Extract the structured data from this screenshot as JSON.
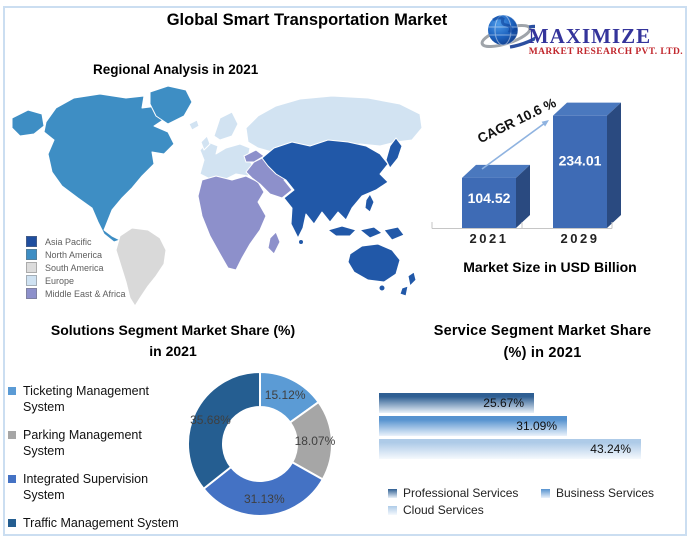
{
  "header": {
    "title": "Global Smart Transportation Market"
  },
  "logo": {
    "name": "MAXIMIZE",
    "subtitle": "MARKET RESEARCH PVT. LTD.",
    "name_color": "#34349B",
    "subtitle_color": "#C1272D"
  },
  "map": {
    "title": "Regional Analysis in 2021",
    "legend": [
      {
        "label": "Asia Pacific",
        "color": "#1F4E9F"
      },
      {
        "label": "North America",
        "color": "#3E8EC4"
      },
      {
        "label": "South America",
        "color": "#DCDCDC"
      },
      {
        "label": "Europe",
        "color": "#CFE2F2"
      },
      {
        "label": "Middle East & Africa",
        "color": "#8D90CB"
      }
    ],
    "region_colors": {
      "asia_pacific": "#2158A8",
      "north_america": "#3E8EC4",
      "south_america": "#D9D9D9",
      "europe": "#D2E3F2",
      "middle_east_africa": "#8D90CB"
    }
  },
  "chart_data": [
    {
      "id": "market_size",
      "type": "bar",
      "categories": [
        "2021",
        "2029"
      ],
      "values": [
        104.52,
        234.01
      ],
      "title": "Market Size in USD Billion",
      "annotation": "CAGR 10.6 %",
      "ylabel": "USD Billion",
      "colors": {
        "front": "#3E6BB5",
        "side": "#2A4A80",
        "top": "#4A78BE",
        "arrow": "#8FB3E0"
      }
    },
    {
      "id": "solutions_segment_share",
      "type": "pie",
      "title_line1": "Solutions Segment Market Share (%)",
      "title_line2": "in 2021",
      "labels": [
        "Ticketing Management System",
        "Parking Management System",
        "Integrated Supervision System",
        "Traffic Management System"
      ],
      "values": [
        15.12,
        18.07,
        31.13,
        35.68
      ],
      "colors": [
        "#5B9BD5",
        "#A6A6A6",
        "#4472C4",
        "#255E91"
      ]
    },
    {
      "id": "service_segment_share",
      "type": "bar",
      "orientation": "horizontal",
      "title_line1": "Service Segment Market Share",
      "title_line2": "(%) in 2021",
      "categories": [
        "Professional Services",
        "Business Services",
        "Cloud Services"
      ],
      "values": [
        25.67,
        31.09,
        43.24
      ],
      "colors_top": [
        "#2F5F93",
        "#5592CF",
        "#AECBE8"
      ],
      "colors_bottom": [
        "#E9F1F9",
        "#EAF2FB",
        "#F5F9FD"
      ]
    }
  ]
}
